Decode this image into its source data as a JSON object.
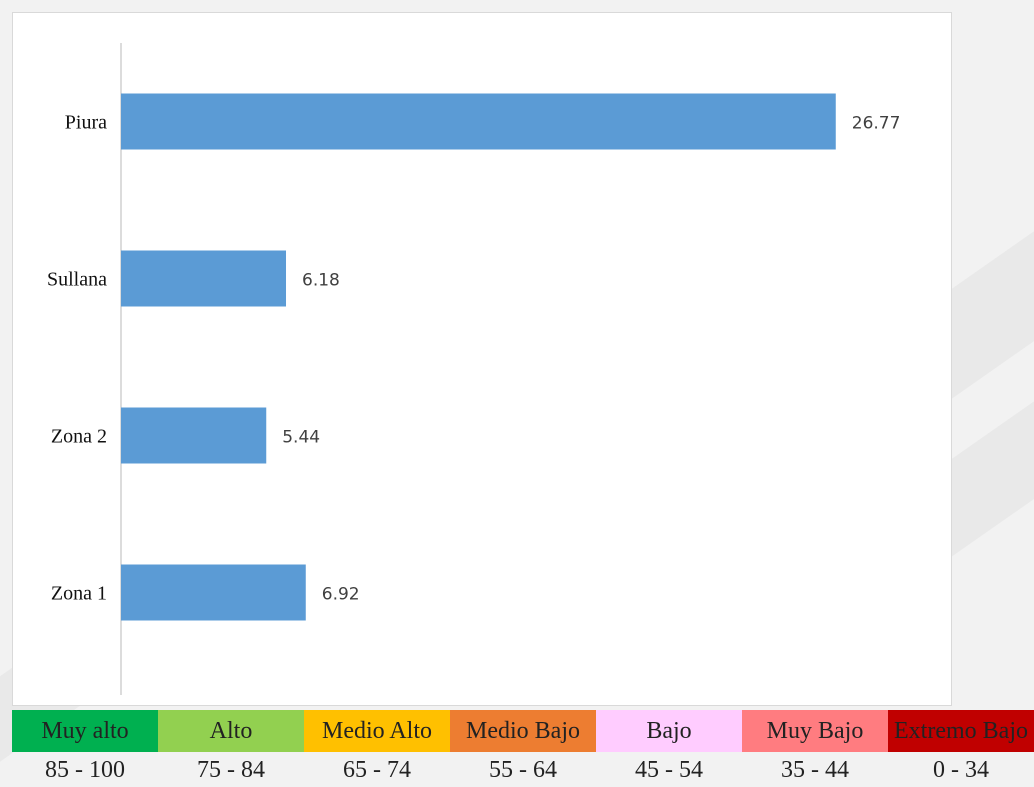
{
  "chart_data": {
    "type": "bar",
    "orientation": "horizontal",
    "categories": [
      "Zona 1",
      "Zona 2",
      "Sullana",
      "Piura"
    ],
    "values": [
      6.92,
      5.44,
      6.18,
      26.77
    ],
    "value_labels": [
      "6.92",
      "5.44",
      "6.18",
      "26.77"
    ],
    "xlim": [
      0,
      30
    ],
    "grid": false,
    "bar_color": "#5b9bd5"
  },
  "legend": {
    "levels": [
      {
        "label": "Muy alto",
        "range": "85 - 100",
        "color": "#00b050"
      },
      {
        "label": "Alto",
        "range": "75 - 84",
        "color": "#92d050"
      },
      {
        "label": "Medio Alto",
        "range": "65 - 74",
        "color": "#ffc000"
      },
      {
        "label": "Medio Bajo",
        "range": "55 - 64",
        "color": "#ed7d31"
      },
      {
        "label": "Bajo",
        "range": "45 - 54",
        "color": "#ffccff"
      },
      {
        "label": "Muy Bajo",
        "range": "35 - 44",
        "color": "#ff7c80"
      },
      {
        "label": "Extremo Bajo",
        "range": "0 - 34",
        "color": "#c00000"
      }
    ]
  }
}
